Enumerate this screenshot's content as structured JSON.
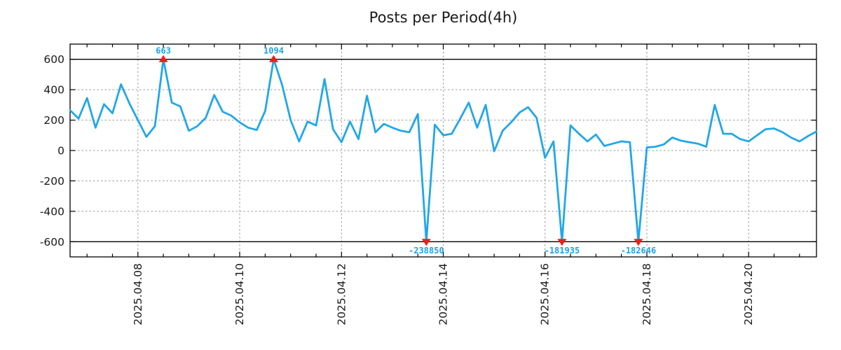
{
  "title": "Posts per Period(4h)",
  "colors": {
    "line": "#22a7e8",
    "annotation": "#1ea2e4",
    "marker": "#e8221c",
    "grid": "#999999",
    "axis": "#000000",
    "clip_line": "#000000",
    "text": "#1a1a1a",
    "background": "#ffffff"
  },
  "chart_data": {
    "type": "line",
    "title": "Posts per Period(4h)",
    "period_hours": 4,
    "x_tick_labels": [
      "2025.04.08",
      "2025.04.10",
      "2025.04.12",
      "2025.04.14",
      "2025.04.16",
      "2025.04.18",
      "2025.04.20"
    ],
    "x_tick_indices": [
      8,
      20,
      32,
      44,
      56,
      68,
      80
    ],
    "x_minor_tick_hours": 12,
    "y_ticks": [
      600,
      400,
      200,
      0,
      -200,
      -400,
      -600
    ],
    "ylim": [
      -700,
      700
    ],
    "clip_value": 600,
    "grid": true,
    "legend": "none",
    "values": [
      265,
      210,
      345,
      150,
      305,
      245,
      435,
      310,
      200,
      90,
      160,
      663,
      315,
      290,
      130,
      160,
      215,
      365,
      255,
      230,
      185,
      150,
      135,
      260,
      1094,
      430,
      200,
      60,
      190,
      165,
      470,
      140,
      55,
      190,
      75,
      360,
      120,
      175,
      150,
      130,
      120,
      240,
      -238850,
      170,
      100,
      110,
      210,
      315,
      150,
      300,
      -5,
      130,
      185,
      250,
      285,
      215,
      -48,
      60,
      -181935,
      165,
      110,
      60,
      105,
      30,
      45,
      60,
      55,
      -182646,
      20,
      25,
      40,
      85,
      65,
      55,
      45,
      25,
      300,
      110,
      110,
      75,
      60,
      100,
      140,
      145,
      120,
      85,
      60,
      95,
      125
    ],
    "annotations": [
      {
        "index": 11,
        "label": "663",
        "value": 663,
        "direction": "up"
      },
      {
        "index": 24,
        "label": "1094",
        "value": 1094,
        "direction": "up"
      },
      {
        "index": 42,
        "label": "-238850",
        "value": -238850,
        "direction": "down"
      },
      {
        "index": 58,
        "label": "-181935",
        "value": -181935,
        "direction": "down"
      },
      {
        "index": 67,
        "label": "-182646",
        "value": -182646,
        "direction": "down"
      }
    ]
  }
}
